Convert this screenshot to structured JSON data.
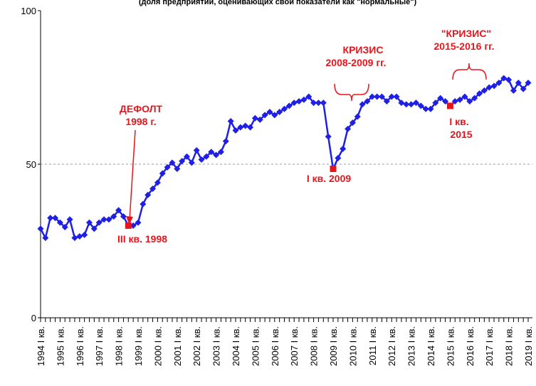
{
  "chart_data": {
    "type": "line",
    "title": "(доля предприятий, оценивающих свои показатели как \"нормальные\")",
    "categories": [
      "1994 I кв.",
      null,
      null,
      null,
      "1995 I кв.",
      null,
      null,
      null,
      "1996 I кв.",
      null,
      null,
      null,
      "1997 I кв.",
      null,
      null,
      null,
      "1998 I кв.",
      null,
      null,
      null,
      "1999 I кв.",
      null,
      null,
      null,
      "2000 I кв.",
      null,
      null,
      null,
      "2001 I кв.",
      null,
      null,
      null,
      "2002 I кв.",
      null,
      null,
      null,
      "2003 I кв.",
      null,
      null,
      null,
      "2004 I кв.",
      null,
      null,
      null,
      "2005 I кв.",
      null,
      null,
      null,
      "2006 I кв.",
      null,
      null,
      null,
      "2007 I кв.",
      null,
      null,
      null,
      "2008 I кв.",
      null,
      null,
      null,
      "2009 I кв.",
      null,
      null,
      null,
      "2010 I кв.",
      null,
      null,
      null,
      "2011 I кв.",
      null,
      null,
      null,
      "2012 I кв.",
      null,
      null,
      null,
      "2013 I кв.",
      null,
      null,
      null,
      "2014 I кв.",
      null,
      null,
      null,
      "2015 I кв.",
      null,
      null,
      null,
      "2016 I кв.",
      null,
      null,
      null,
      "2017 I кв.",
      null,
      null,
      null,
      "2018 I кв.",
      null,
      null,
      null,
      "2019 I кв."
    ],
    "series": [
      {
        "color": "#1f1fe6",
        "values": [
          29,
          26,
          32.5,
          32.5,
          31,
          29.5,
          32,
          26,
          26.5,
          27,
          31,
          29,
          31,
          32,
          32,
          33,
          35,
          33,
          30,
          30,
          31,
          37,
          40,
          42,
          44,
          47,
          49,
          50.5,
          48.5,
          51,
          52.5,
          50.5,
          54.5,
          51.5,
          52.5,
          54,
          53,
          54,
          57.5,
          64,
          61,
          62,
          62.5,
          62,
          65,
          64.5,
          66,
          67,
          66,
          67,
          68,
          69,
          70,
          70.5,
          71,
          72,
          70,
          70,
          70,
          59,
          48.5,
          52,
          55,
          61.5,
          63.5,
          65.5,
          69.5,
          70.5,
          72,
          72,
          72,
          70.5,
          72,
          72,
          70,
          69.5,
          69.5,
          70,
          69,
          68,
          68,
          70,
          71.5,
          70.5,
          69,
          70.5,
          71,
          72,
          70.5,
          71.5,
          73,
          74,
          75,
          75.5,
          76.5,
          78,
          77.5,
          74,
          76.5,
          74.5,
          76.5
        ]
      }
    ],
    "highlight_color": "#e8141c",
    "annotations": [
      "ДЕФОЛТ",
      "1998 г.",
      "III кв. 1998",
      "КРИЗИС",
      "2008-2009 гг.",
      "I кв. 2009",
      "\"КРИЗИС\"",
      "2015-2016 гг.",
      "I кв.",
      "2015"
    ],
    "ylim": [
      0,
      100
    ],
    "yticks": [
      0,
      50,
      100
    ],
    "grid": true
  }
}
